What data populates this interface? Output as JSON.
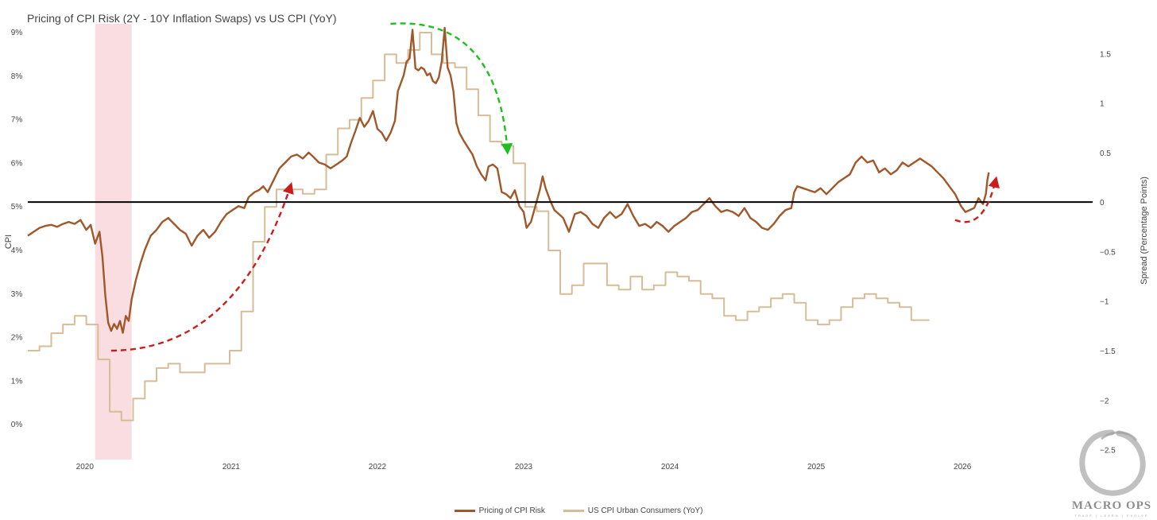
{
  "chart_data": {
    "type": "line",
    "title": "Pricing of CPI Risk (2Y - 10Y Inflation Swaps) vs US CPI (YoY)",
    "ylabel_left": "CPI",
    "ylabel_right": "Spread (Percentage Points)",
    "left_axis": {
      "ticks": [
        "0%",
        "1%",
        "2%",
        "3%",
        "4%",
        "5%",
        "6%",
        "7%",
        "8%",
        "9%"
      ],
      "range": [
        -0.8,
        9.2
      ]
    },
    "right_axis": {
      "ticks": [
        "−2.5",
        "−2",
        "−1.5",
        "−1",
        "−0.5",
        "0",
        "0.5",
        "1",
        "1.5"
      ],
      "range": [
        -2.6,
        1.8
      ]
    },
    "x_ticks": [
      "2020",
      "2021",
      "2022",
      "2023",
      "2024",
      "2025",
      "2026"
    ],
    "x_range": [
      2019.62,
      2026.9
    ],
    "zero_reference_line": 0,
    "shaded_region": {
      "from": 2020.08,
      "to": 2020.33,
      "color": "#f9dde1"
    },
    "legend_position": "bottom-center",
    "series": [
      {
        "name": "Pricing of CPI Risk",
        "axis": "right",
        "color": "#a0582a",
        "style": "line",
        "points": [
          [
            2019.62,
            -0.34
          ],
          [
            2019.66,
            -0.3
          ],
          [
            2019.7,
            -0.26
          ],
          [
            2019.74,
            -0.24
          ],
          [
            2019.78,
            -0.23
          ],
          [
            2019.82,
            -0.25
          ],
          [
            2019.86,
            -0.22
          ],
          [
            2019.9,
            -0.2
          ],
          [
            2019.94,
            -0.22
          ],
          [
            2019.98,
            -0.18
          ],
          [
            2020.02,
            -0.28
          ],
          [
            2020.05,
            -0.23
          ],
          [
            2020.08,
            -0.42
          ],
          [
            2020.11,
            -0.3
          ],
          [
            2020.13,
            -0.55
          ],
          [
            2020.15,
            -0.95
          ],
          [
            2020.17,
            -1.22
          ],
          [
            2020.19,
            -1.3
          ],
          [
            2020.21,
            -1.23
          ],
          [
            2020.23,
            -1.28
          ],
          [
            2020.25,
            -1.2
          ],
          [
            2020.27,
            -1.32
          ],
          [
            2020.29,
            -1.15
          ],
          [
            2020.31,
            -1.2
          ],
          [
            2020.33,
            -0.98
          ],
          [
            2020.36,
            -0.78
          ],
          [
            2020.39,
            -0.62
          ],
          [
            2020.42,
            -0.48
          ],
          [
            2020.46,
            -0.34
          ],
          [
            2020.5,
            -0.28
          ],
          [
            2020.54,
            -0.2
          ],
          [
            2020.58,
            -0.16
          ],
          [
            2020.62,
            -0.22
          ],
          [
            2020.66,
            -0.28
          ],
          [
            2020.7,
            -0.32
          ],
          [
            2020.74,
            -0.44
          ],
          [
            2020.78,
            -0.34
          ],
          [
            2020.82,
            -0.28
          ],
          [
            2020.86,
            -0.36
          ],
          [
            2020.9,
            -0.3
          ],
          [
            2020.94,
            -0.2
          ],
          [
            2020.98,
            -0.12
          ],
          [
            2021.02,
            -0.08
          ],
          [
            2021.06,
            -0.04
          ],
          [
            2021.1,
            -0.06
          ],
          [
            2021.13,
            0.05
          ],
          [
            2021.17,
            0.1
          ],
          [
            2021.2,
            0.12
          ],
          [
            2021.23,
            0.16
          ],
          [
            2021.26,
            0.1
          ],
          [
            2021.3,
            0.22
          ],
          [
            2021.34,
            0.34
          ],
          [
            2021.38,
            0.4
          ],
          [
            2021.42,
            0.46
          ],
          [
            2021.46,
            0.48
          ],
          [
            2021.5,
            0.44
          ],
          [
            2021.54,
            0.5
          ],
          [
            2021.57,
            0.46
          ],
          [
            2021.61,
            0.4
          ],
          [
            2021.65,
            0.38
          ],
          [
            2021.69,
            0.34
          ],
          [
            2021.73,
            0.38
          ],
          [
            2021.77,
            0.42
          ],
          [
            2021.8,
            0.46
          ],
          [
            2021.83,
            0.6
          ],
          [
            2021.86,
            0.72
          ],
          [
            2021.89,
            0.85
          ],
          [
            2021.92,
            0.76
          ],
          [
            2021.95,
            0.82
          ],
          [
            2021.98,
            0.92
          ],
          [
            2022.01,
            0.74
          ],
          [
            2022.04,
            0.7
          ],
          [
            2022.07,
            0.62
          ],
          [
            2022.1,
            0.7
          ],
          [
            2022.13,
            0.82
          ],
          [
            2022.15,
            1.12
          ],
          [
            2022.17,
            1.2
          ],
          [
            2022.19,
            1.28
          ],
          [
            2022.21,
            1.42
          ],
          [
            2022.23,
            1.45
          ],
          [
            2022.25,
            1.74
          ],
          [
            2022.27,
            1.35
          ],
          [
            2022.29,
            1.33
          ],
          [
            2022.31,
            1.36
          ],
          [
            2022.33,
            1.34
          ],
          [
            2022.35,
            1.28
          ],
          [
            2022.37,
            1.3
          ],
          [
            2022.39,
            1.22
          ],
          [
            2022.41,
            1.2
          ],
          [
            2022.43,
            1.26
          ],
          [
            2022.45,
            1.42
          ],
          [
            2022.47,
            1.76
          ],
          [
            2022.49,
            1.36
          ],
          [
            2022.51,
            1.28
          ],
          [
            2022.53,
            1.12
          ],
          [
            2022.55,
            0.8
          ],
          [
            2022.57,
            0.7
          ],
          [
            2022.6,
            0.62
          ],
          [
            2022.63,
            0.55
          ],
          [
            2022.66,
            0.48
          ],
          [
            2022.69,
            0.36
          ],
          [
            2022.72,
            0.28
          ],
          [
            2022.75,
            0.22
          ],
          [
            2022.77,
            0.36
          ],
          [
            2022.8,
            0.38
          ],
          [
            2022.83,
            0.34
          ],
          [
            2022.86,
            0.1
          ],
          [
            2022.89,
            0.08
          ],
          [
            2022.92,
            0.04
          ],
          [
            2022.95,
            0.12
          ],
          [
            2022.98,
            -0.04
          ],
          [
            2023.01,
            -0.1
          ],
          [
            2023.03,
            -0.26
          ],
          [
            2023.06,
            -0.2
          ],
          [
            2023.09,
            -0.04
          ],
          [
            2023.12,
            0.12
          ],
          [
            2023.14,
            0.26
          ],
          [
            2023.16,
            0.14
          ],
          [
            2023.19,
            0.02
          ],
          [
            2023.22,
            -0.08
          ],
          [
            2023.25,
            -0.12
          ],
          [
            2023.28,
            -0.16
          ],
          [
            2023.32,
            -0.3
          ],
          [
            2023.36,
            -0.12
          ],
          [
            2023.4,
            -0.1
          ],
          [
            2023.44,
            -0.14
          ],
          [
            2023.48,
            -0.22
          ],
          [
            2023.52,
            -0.26
          ],
          [
            2023.56,
            -0.16
          ],
          [
            2023.6,
            -0.1
          ],
          [
            2023.64,
            -0.16
          ],
          [
            2023.68,
            -0.12
          ],
          [
            2023.72,
            -0.02
          ],
          [
            2023.76,
            -0.14
          ],
          [
            2023.8,
            -0.24
          ],
          [
            2023.84,
            -0.22
          ],
          [
            2023.88,
            -0.26
          ],
          [
            2023.92,
            -0.2
          ],
          [
            2023.96,
            -0.24
          ],
          [
            2024.0,
            -0.3
          ],
          [
            2024.04,
            -0.24
          ],
          [
            2024.08,
            -0.2
          ],
          [
            2024.12,
            -0.16
          ],
          [
            2024.16,
            -0.1
          ],
          [
            2024.2,
            -0.08
          ],
          [
            2024.24,
            -0.02
          ],
          [
            2024.28,
            0.04
          ],
          [
            2024.32,
            -0.04
          ],
          [
            2024.36,
            -0.1
          ],
          [
            2024.4,
            -0.08
          ],
          [
            2024.44,
            -0.1
          ],
          [
            2024.48,
            -0.14
          ],
          [
            2024.52,
            -0.06
          ],
          [
            2024.56,
            -0.16
          ],
          [
            2024.6,
            -0.2
          ],
          [
            2024.64,
            -0.26
          ],
          [
            2024.68,
            -0.28
          ],
          [
            2024.72,
            -0.22
          ],
          [
            2024.76,
            -0.14
          ],
          [
            2024.8,
            -0.08
          ],
          [
            2024.84,
            -0.06
          ],
          [
            2024.86,
            0.1
          ],
          [
            2024.88,
            0.16
          ],
          [
            2024.92,
            0.14
          ],
          [
            2024.96,
            0.12
          ],
          [
            2025.0,
            0.1
          ],
          [
            2025.04,
            0.14
          ],
          [
            2025.08,
            0.08
          ],
          [
            2025.12,
            0.14
          ],
          [
            2025.16,
            0.2
          ],
          [
            2025.2,
            0.24
          ],
          [
            2025.24,
            0.28
          ],
          [
            2025.28,
            0.4
          ],
          [
            2025.32,
            0.46
          ],
          [
            2025.36,
            0.4
          ],
          [
            2025.4,
            0.42
          ],
          [
            2025.44,
            0.3
          ],
          [
            2025.48,
            0.34
          ],
          [
            2025.52,
            0.28
          ],
          [
            2025.56,
            0.32
          ],
          [
            2025.6,
            0.4
          ],
          [
            2025.64,
            0.36
          ],
          [
            2025.68,
            0.4
          ],
          [
            2025.72,
            0.44
          ],
          [
            2025.76,
            0.4
          ],
          [
            2025.8,
            0.36
          ],
          [
            2025.84,
            0.3
          ],
          [
            2025.88,
            0.24
          ],
          [
            2025.92,
            0.16
          ],
          [
            2025.96,
            0.08
          ],
          [
            2026.0,
            -0.04
          ],
          [
            2026.03,
            -0.1
          ],
          [
            2026.06,
            -0.08
          ],
          [
            2026.09,
            -0.06
          ],
          [
            2026.12,
            0.04
          ],
          [
            2026.15,
            -0.02
          ],
          [
            2026.17,
            0.08
          ],
          [
            2026.18,
            0.22
          ],
          [
            2026.19,
            0.3
          ]
        ]
      },
      {
        "name": "US CPI Urban Consumers (YoY)",
        "axis": "left",
        "color": "#d6bc97",
        "style": "step",
        "points": [
          [
            2019.62,
            1.7
          ],
          [
            2019.7,
            1.8
          ],
          [
            2019.78,
            2.1
          ],
          [
            2019.86,
            2.3
          ],
          [
            2019.94,
            2.5
          ],
          [
            2020.02,
            2.3
          ],
          [
            2020.1,
            1.5
          ],
          [
            2020.18,
            0.3
          ],
          [
            2020.26,
            0.1
          ],
          [
            2020.34,
            0.6
          ],
          [
            2020.42,
            1.0
          ],
          [
            2020.5,
            1.3
          ],
          [
            2020.58,
            1.4
          ],
          [
            2020.66,
            1.2
          ],
          [
            2020.83,
            1.4
          ],
          [
            2021.0,
            1.7
          ],
          [
            2021.08,
            2.6
          ],
          [
            2021.16,
            4.2
          ],
          [
            2021.24,
            5.0
          ],
          [
            2021.32,
            5.4
          ],
          [
            2021.5,
            5.3
          ],
          [
            2021.58,
            5.4
          ],
          [
            2021.66,
            6.2
          ],
          [
            2021.74,
            6.8
          ],
          [
            2021.82,
            7.0
          ],
          [
            2021.9,
            7.5
          ],
          [
            2021.98,
            7.9
          ],
          [
            2022.06,
            8.5
          ],
          [
            2022.14,
            8.3
          ],
          [
            2022.22,
            8.6
          ],
          [
            2022.3,
            9.0
          ],
          [
            2022.38,
            8.5
          ],
          [
            2022.46,
            8.3
          ],
          [
            2022.54,
            8.2
          ],
          [
            2022.62,
            7.7
          ],
          [
            2022.7,
            7.1
          ],
          [
            2022.78,
            6.5
          ],
          [
            2022.86,
            6.4
          ],
          [
            2022.94,
            6.0
          ],
          [
            2023.02,
            5.0
          ],
          [
            2023.1,
            4.9
          ],
          [
            2023.18,
            4.0
          ],
          [
            2023.26,
            3.0
          ],
          [
            2023.34,
            3.2
          ],
          [
            2023.42,
            3.7
          ],
          [
            2023.58,
            3.2
          ],
          [
            2023.66,
            3.1
          ],
          [
            2023.74,
            3.4
          ],
          [
            2023.82,
            3.1
          ],
          [
            2023.9,
            3.2
          ],
          [
            2023.98,
            3.5
          ],
          [
            2024.06,
            3.4
          ],
          [
            2024.14,
            3.3
          ],
          [
            2024.22,
            3.0
          ],
          [
            2024.3,
            2.9
          ],
          [
            2024.38,
            2.5
          ],
          [
            2024.46,
            2.4
          ],
          [
            2024.54,
            2.6
          ],
          [
            2024.62,
            2.7
          ],
          [
            2024.7,
            2.9
          ],
          [
            2024.78,
            3.0
          ],
          [
            2024.86,
            2.8
          ],
          [
            2024.94,
            2.4
          ],
          [
            2025.02,
            2.3
          ],
          [
            2025.1,
            2.4
          ],
          [
            2025.18,
            2.7
          ],
          [
            2025.26,
            2.9
          ],
          [
            2025.34,
            3.0
          ],
          [
            2025.42,
            2.9
          ],
          [
            2025.5,
            2.8
          ],
          [
            2025.58,
            2.7
          ],
          [
            2025.66,
            2.4
          ],
          [
            2025.74,
            2.4
          ]
        ]
      }
    ],
    "annotations": [
      {
        "type": "dashed-arrow",
        "color": "#cc1d1d",
        "from": [
          2020.19,
          -1.5
        ],
        "to": [
          2021.42,
          0.18
        ]
      },
      {
        "type": "dashed-arrow",
        "color": "#1fbf1f",
        "from": [
          2022.1,
          1.8
        ],
        "to": [
          2022.9,
          0.5
        ]
      },
      {
        "type": "dashed-arrow",
        "color": "#cc1d1d",
        "from": [
          2025.96,
          -0.18
        ],
        "to": [
          2026.24,
          0.24
        ]
      }
    ]
  },
  "watermark": {
    "text": "MACRO OPS",
    "subtext": "TRADE | LEARN | EVOLVE"
  },
  "legend": [
    {
      "label": "Pricing of CPI Risk",
      "color": "#a0582a"
    },
    {
      "label": "US CPI Urban Consumers (YoY)",
      "color": "#d6bc97"
    }
  ]
}
